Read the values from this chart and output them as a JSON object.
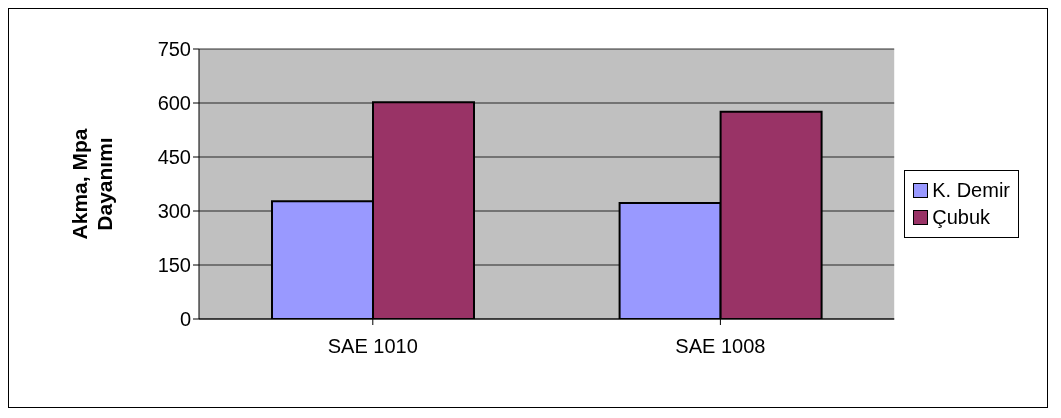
{
  "chart_data": {
    "type": "bar",
    "ylabel": "Akma, Mpa\nDayanımı",
    "categories": [
      "SAE 1010",
      "SAE 1008"
    ],
    "series": [
      {
        "name": "K. Demir",
        "color": "#9999ff",
        "values": [
          327,
          322
        ]
      },
      {
        "name": "Çubuk",
        "color": "#993366",
        "values": [
          602,
          576
        ]
      }
    ],
    "ylim": [
      0,
      750
    ],
    "yticks": [
      0,
      150,
      300,
      450,
      600,
      750
    ],
    "grid": "y",
    "legend": "right"
  }
}
